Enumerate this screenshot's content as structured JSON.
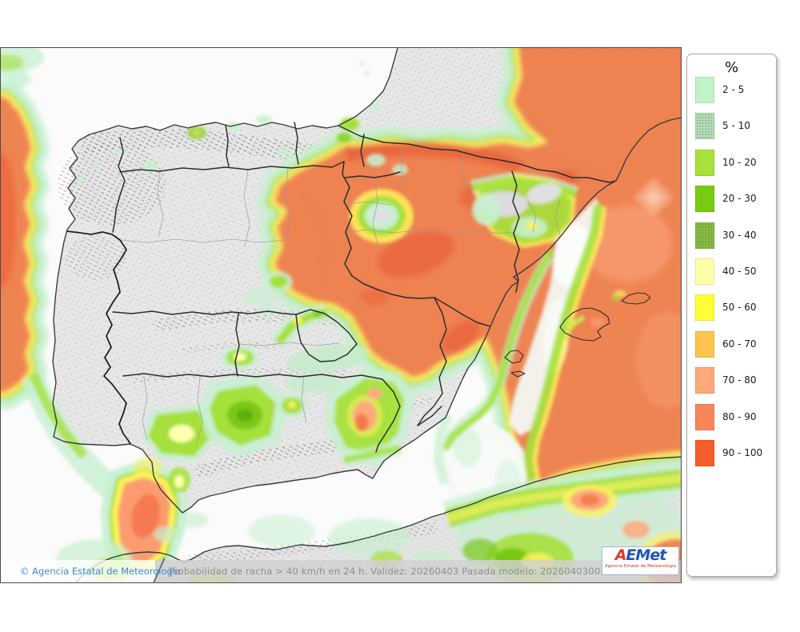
{
  "legend": {
    "title": "%",
    "items": [
      {
        "label": "2 - 5",
        "color": "#c2f2c8",
        "textured": false
      },
      {
        "label": "5 - 10",
        "color": "#b5dcb8",
        "textured": true
      },
      {
        "label": "10 - 20",
        "color": "#a8e03c",
        "textured": false
      },
      {
        "label": "20 - 30",
        "color": "#77cc12",
        "textured": false
      },
      {
        "label": "30 - 40",
        "color": "#88bb44",
        "textured": true
      },
      {
        "label": "40 - 50",
        "color": "#ffffaa",
        "textured": false
      },
      {
        "label": "50 - 60",
        "color": "#ffff38",
        "textured": false
      },
      {
        "label": "60 - 70",
        "color": "#fec44f",
        "textured": false
      },
      {
        "label": "70 - 80",
        "color": "#fda97c",
        "textured": false
      },
      {
        "label": "80 - 90",
        "color": "#f9855a",
        "textured": false
      },
      {
        "label": "90 - 100",
        "color": "#f65d2c",
        "textured": false
      }
    ]
  },
  "footer": {
    "copyright": "© Agencia Estatal de Meteorología",
    "description": "Probabilidad de racha > 40 km/h en 24 h. Validez: 20260403 Pasada modelo: 2026040300"
  },
  "logo": {
    "part_a": "A",
    "part_e": "E",
    "part_met": "Met",
    "subtitle": "Agencia Estatal de Meteorología"
  },
  "map": {
    "sea_color": "#fbfbfb",
    "land_color": "#e7e7e7",
    "high_probability_color": "#ef7a45"
  }
}
